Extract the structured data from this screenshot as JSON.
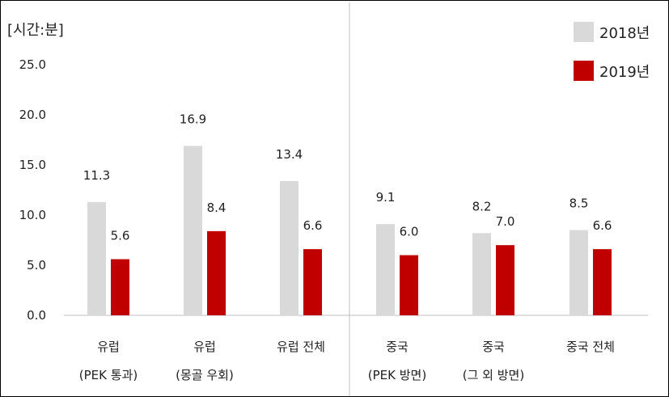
{
  "chart_data": {
    "type": "bar",
    "unit_label": "[시간:분]",
    "categories": [
      [
        "유럽",
        "(PEK 통과)"
      ],
      [
        "유럽",
        "(몽골 우회)"
      ],
      [
        "유럽 전체",
        ""
      ],
      [
        "중국",
        "(PEK 방면)"
      ],
      [
        "중국",
        "(그 외 방면)"
      ],
      [
        "중국 전체",
        ""
      ]
    ],
    "value_labels": {
      "2018년": [
        "11.3",
        "16.9",
        "13.4",
        "9.1",
        "8.2",
        "8.5"
      ],
      "2019년": [
        "5.6",
        "8.4",
        "6.6",
        "6.0",
        "7.0",
        "6.6"
      ]
    },
    "series": [
      {
        "name": "2018년",
        "color": "#d9d9d9",
        "values": [
          11.3,
          16.9,
          13.4,
          9.1,
          8.2,
          8.5
        ]
      },
      {
        "name": "2019년",
        "color": "#c00000",
        "values": [
          5.6,
          8.4,
          6.6,
          6.0,
          7.0,
          6.6
        ]
      }
    ],
    "yticks": [
      "25.0",
      "20.0",
      "15.0",
      "10.0",
      "5.0",
      "0.0"
    ],
    "ylim": [
      0,
      25
    ],
    "grid": false,
    "legend_position": "top-right"
  }
}
